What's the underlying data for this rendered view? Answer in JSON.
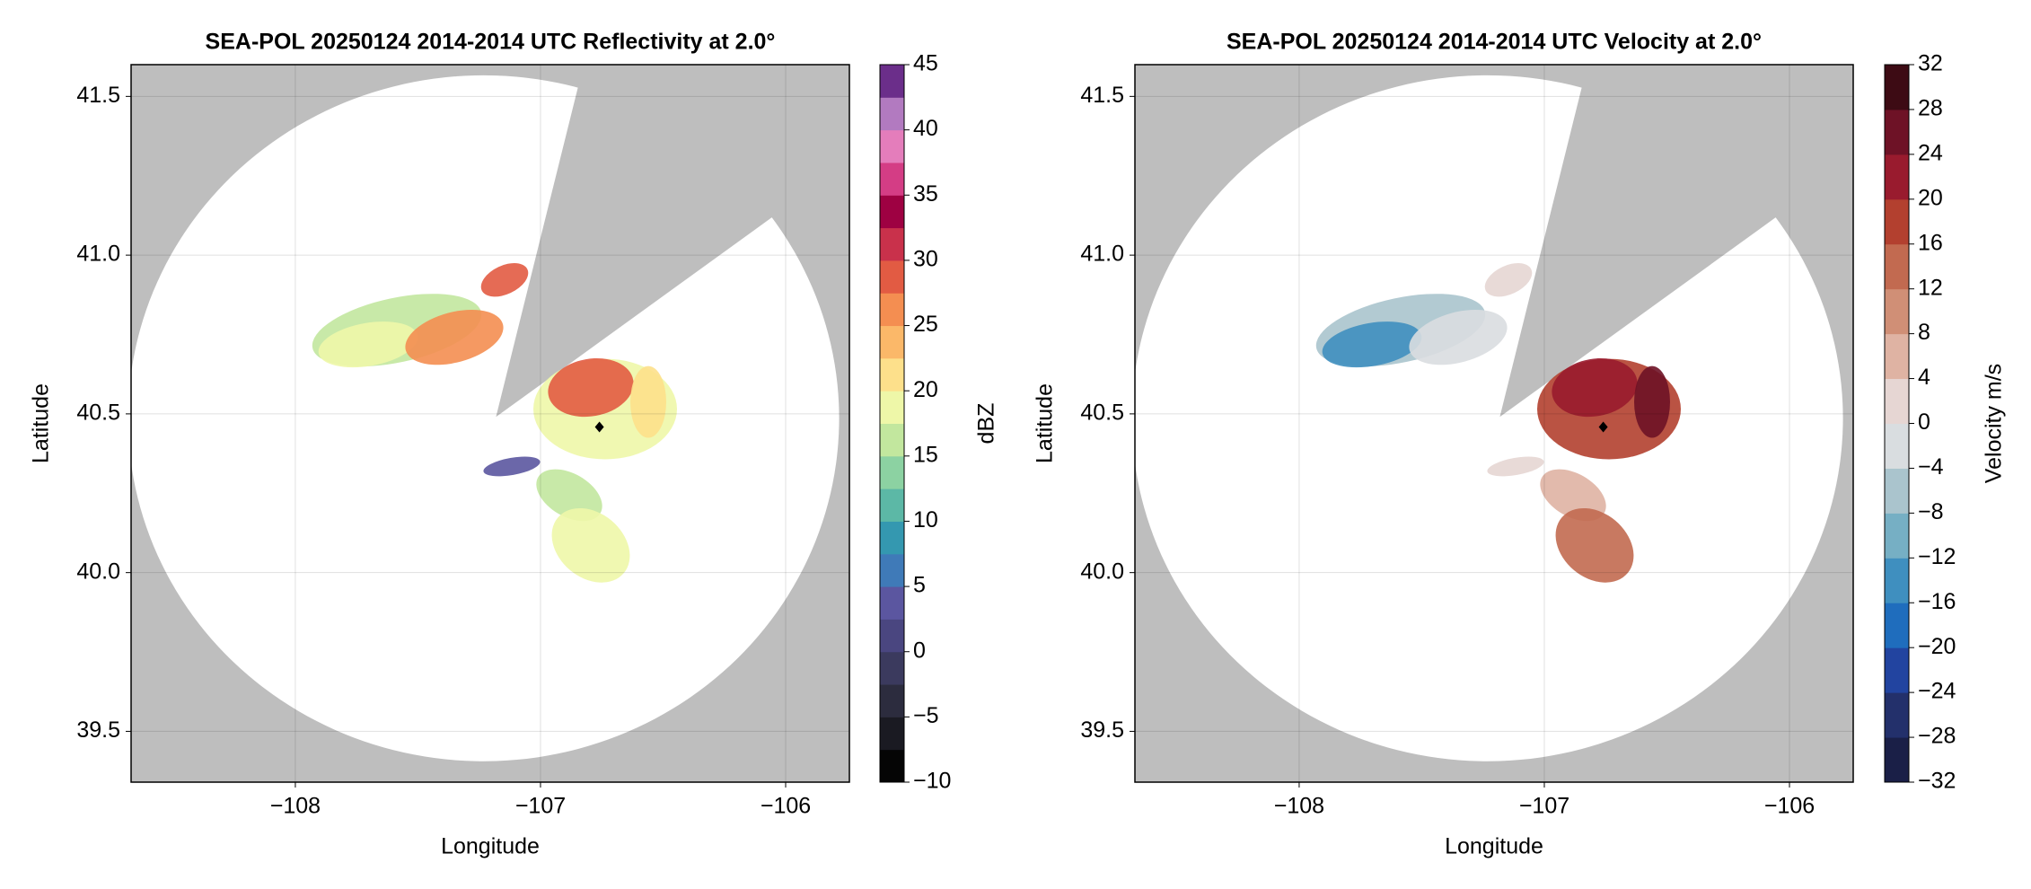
{
  "chart_data": [
    {
      "type": "radar",
      "title": "SEA-POL 20250124 2014-2014 UTC Reflectivity at 2.0°",
      "xlabel": "Longitude",
      "ylabel": "Latitude",
      "xlim": [
        -108.67,
        -105.74
      ],
      "ylim": [
        39.34,
        41.6
      ],
      "xticks": [
        {
          "value": -108,
          "label": "−108"
        },
        {
          "value": -107,
          "label": "−107"
        },
        {
          "value": -106,
          "label": "−106"
        }
      ],
      "yticks": [
        39.5,
        {
          "value": 40,
          "label": "40.0"
        },
        40.5,
        {
          "value": 41,
          "label": "41.0"
        },
        41.5
      ],
      "grid": true,
      "colorbar": {
        "label": "dBZ",
        "lim": [
          -10,
          45
        ],
        "ticks": [
          {
            "value": -10,
            "label": "−10"
          },
          {
            "value": -5,
            "label": "−5"
          },
          0,
          5,
          10,
          15,
          20,
          25,
          30,
          35,
          40,
          45
        ],
        "colors": [
          "#050505",
          "#1a1a22",
          "#2c2c3e",
          "#3b3a5e",
          "#4a4680",
          "#5b56a0",
          "#3f7ab8",
          "#3498b0",
          "#5cb8a6",
          "#8cd2a2",
          "#c2e79e",
          "#eef7a8",
          "#fde08b",
          "#fbb869",
          "#f48e51",
          "#e25b43",
          "#c9314b",
          "#9e0142",
          "#d43d85",
          "#e47dbb",
          "#b27ac0",
          "#6b2e8a"
        ]
      }
    },
    {
      "type": "radar",
      "title": "SEA-POL 20250124 2014-2014 UTC Velocity at 2.0°",
      "xlabel": "Longitude",
      "ylabel": "Latitude",
      "xlim": [
        -108.67,
        -105.74
      ],
      "ylim": [
        39.34,
        41.6
      ],
      "xticks": [
        {
          "value": -108,
          "label": "−108"
        },
        {
          "value": -107,
          "label": "−107"
        },
        {
          "value": -106,
          "label": "−106"
        }
      ],
      "yticks": [
        39.5,
        {
          "value": 40,
          "label": "40.0"
        },
        40.5,
        {
          "value": 41,
          "label": "41.0"
        },
        41.5
      ],
      "grid": true,
      "colorbar": {
        "label": "Velocity m/s",
        "lim": [
          -32,
          32
        ],
        "ticks": [
          {
            "value": -32,
            "label": "−32"
          },
          {
            "value": -28,
            "label": "−28"
          },
          {
            "value": -24,
            "label": "−24"
          },
          {
            "value": -20,
            "label": "−20"
          },
          {
            "value": -16,
            "label": "−16"
          },
          {
            "value": -12,
            "label": "−12"
          },
          {
            "value": -8,
            "label": "−8"
          },
          {
            "value": -4,
            "label": "−4"
          },
          0,
          4,
          8,
          12,
          16,
          20,
          24,
          28,
          32
        ],
        "colors": [
          "#1a1f47",
          "#23306b",
          "#2244a0",
          "#1f6dbd",
          "#3f8fbf",
          "#76afc4",
          "#aac4cd",
          "#d9dde0",
          "#e6d6d3",
          "#dfb3a3",
          "#d08f76",
          "#c26a50",
          "#b3402f",
          "#991b2e",
          "#6e1226",
          "#3d0b14"
        ]
      }
    }
  ]
}
